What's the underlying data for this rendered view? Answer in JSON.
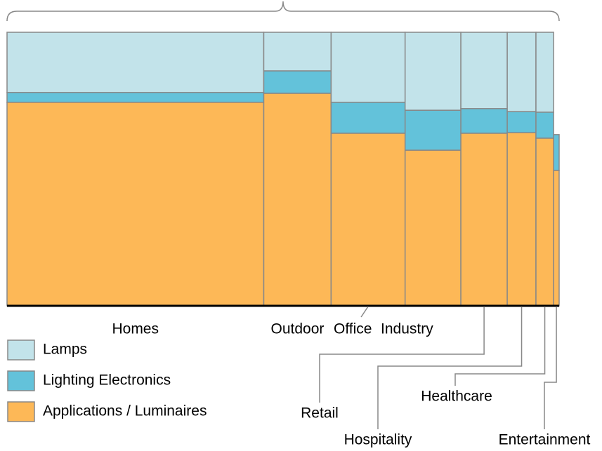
{
  "chart_data": {
    "type": "mekko",
    "categories": [
      "Homes",
      "Outdoor",
      "Office",
      "Industry",
      "Retail",
      "Hospitality",
      "Healthcare",
      "Entertainment"
    ],
    "widths": [
      46.5,
      12.2,
      13.4,
      10.1,
      8.4,
      5.2,
      3.2,
      1.0
    ],
    "series": [
      {
        "name": "Applications / Luminaires",
        "color": "#fdb857",
        "values": [
          74.4,
          77.7,
          63.1,
          56.9,
          63.1,
          63.3,
          61.3,
          49.5
        ]
      },
      {
        "name": "Lighting Electronics",
        "color": "#63c2da",
        "values": [
          3.6,
          8.2,
          11.3,
          14.6,
          9.0,
          7.7,
          9.5,
          13.1
        ]
      },
      {
        "name": "Lamps",
        "color": "#c2e3ea",
        "values": [
          22.0,
          14.1,
          25.6,
          28.5,
          27.9,
          29.0,
          29.2,
          0
        ]
      }
    ]
  }
}
